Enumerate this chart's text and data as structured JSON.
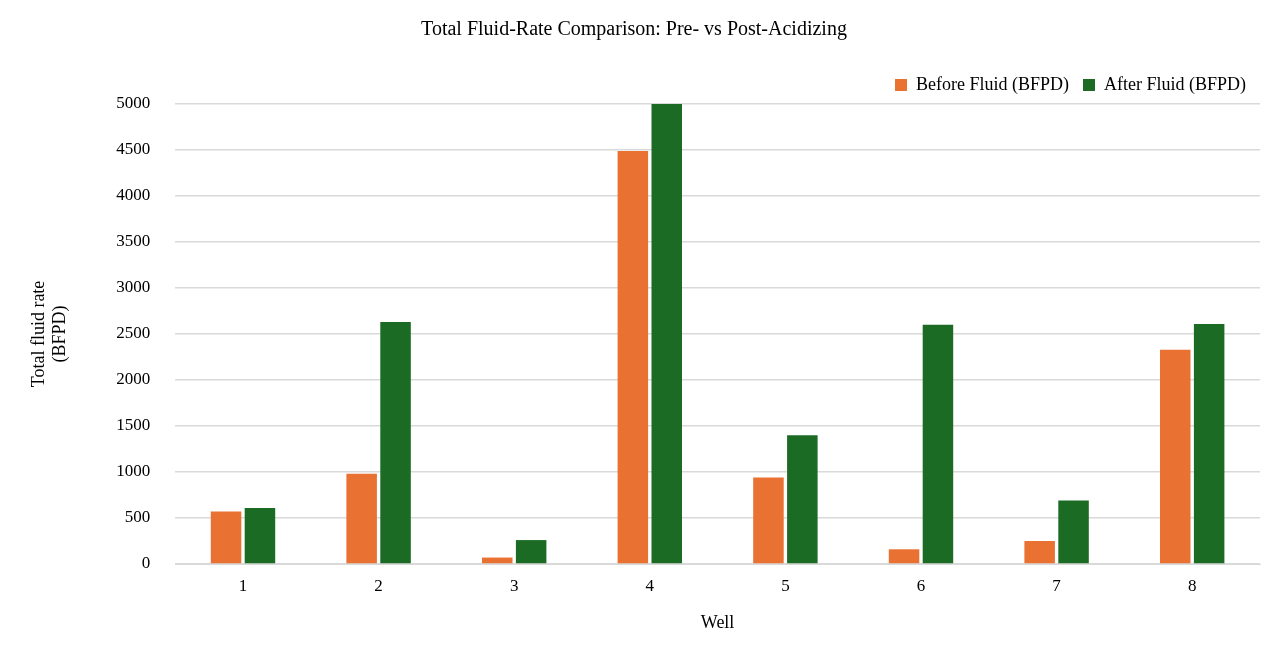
{
  "chart_data": {
    "type": "bar",
    "title": "Total Fluid-Rate Comparison: Pre- vs Post-Acidizing",
    "xlabel": "Well",
    "ylabel": "Total fluid rate (BFPD)",
    "categories": [
      "1",
      "2",
      "3",
      "4",
      "5",
      "6",
      "7",
      "8"
    ],
    "series": [
      {
        "name": "Before Fluid (BFPD)",
        "color": "#e97132",
        "values": [
          570,
          980,
          70,
          4490,
          940,
          160,
          250,
          2330
        ]
      },
      {
        "name": "After Fluid (BFPD)",
        "color": "#1b6b24",
        "values": [
          610,
          2630,
          260,
          5000,
          1400,
          2600,
          690,
          2610
        ]
      }
    ],
    "ylim": [
      0,
      5000
    ],
    "yticks": [
      0,
      500,
      1000,
      1500,
      2000,
      2500,
      3000,
      3500,
      4000,
      4500,
      5000
    ],
    "grid": "y",
    "legend": "top right"
  }
}
